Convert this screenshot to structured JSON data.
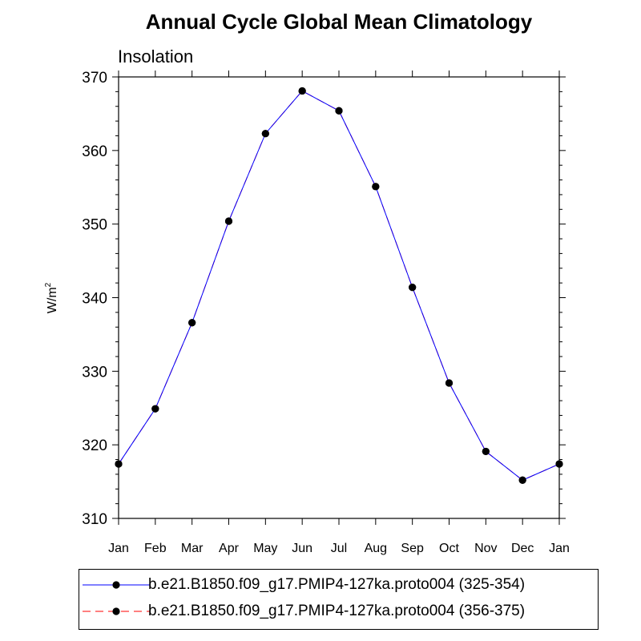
{
  "chart_data": {
    "type": "line",
    "title": "Annual Cycle Global Mean Climatology",
    "subtitle": "Insolation",
    "xlabel": "",
    "ylabel": "W/m",
    "ylabel_superscript": "2",
    "ylim": [
      310,
      370
    ],
    "yticks": [
      310,
      320,
      330,
      340,
      350,
      360,
      370
    ],
    "yticks_text": [
      "310",
      "320",
      "330",
      "340",
      "350",
      "360",
      "370"
    ],
    "categories": [
      "Jan",
      "Feb",
      "Mar",
      "Apr",
      "May",
      "Jun",
      "Jul",
      "Aug",
      "Sep",
      "Oct",
      "Nov",
      "Dec",
      "Jan"
    ],
    "series": [
      {
        "name": "b.e21.B1850.f09_g17.PMIP4-127ka.proto004 (325-354)",
        "color": "#0000ff",
        "style": "solid",
        "marker": "circle",
        "values": [
          317.4,
          324.9,
          336.6,
          350.4,
          362.3,
          368.1,
          365.4,
          355.1,
          341.4,
          328.4,
          319.1,
          315.2,
          317.4
        ]
      },
      {
        "name": "b.e21.B1850.f09_g17.PMIP4-127ka.proto004 (356-375)",
        "color": "#ff0000",
        "style": "dashed",
        "marker": "circle",
        "values": [
          317.4,
          324.9,
          336.6,
          350.4,
          362.3,
          368.1,
          365.4,
          355.1,
          341.4,
          328.4,
          319.1,
          315.2,
          317.4
        ]
      }
    ],
    "legend_position": "bottom"
  }
}
